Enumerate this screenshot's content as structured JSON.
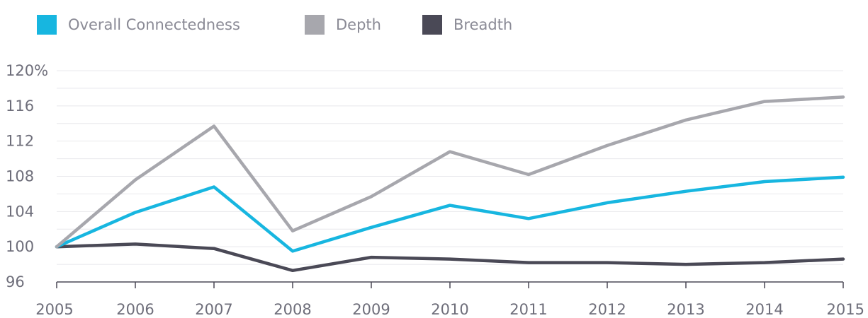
{
  "chart_data": {
    "type": "line",
    "title": "",
    "xlabel": "",
    "ylabel": "",
    "categories": [
      "2005",
      "2006",
      "2007",
      "2008",
      "2009",
      "2010",
      "2011",
      "2012",
      "2013",
      "2014",
      "2015"
    ],
    "ylim": [
      96,
      120
    ],
    "yticks": [
      96,
      100,
      104,
      108,
      112,
      116,
      120
    ],
    "ytick_labels": [
      "96",
      "100",
      "104",
      "108",
      "112",
      "116",
      "120%"
    ],
    "grid": true,
    "legend_position": "top-left",
    "series": [
      {
        "name": "Overall Connectedness",
        "color": "#17b6e0",
        "values": [
          100,
          103.9,
          106.8,
          99.5,
          102.2,
          104.7,
          103.2,
          105.0,
          106.3,
          107.4,
          107.9
        ]
      },
      {
        "name": "Depth",
        "color": "#a7a7ad",
        "values": [
          100,
          107.6,
          113.7,
          101.8,
          105.7,
          110.8,
          108.2,
          111.5,
          114.4,
          116.5,
          117.0
        ]
      },
      {
        "name": "Breadth",
        "color": "#4a4956",
        "values": [
          100,
          100.3,
          99.8,
          97.3,
          98.8,
          98.6,
          98.2,
          98.2,
          98.0,
          98.2,
          98.6
        ]
      }
    ]
  }
}
